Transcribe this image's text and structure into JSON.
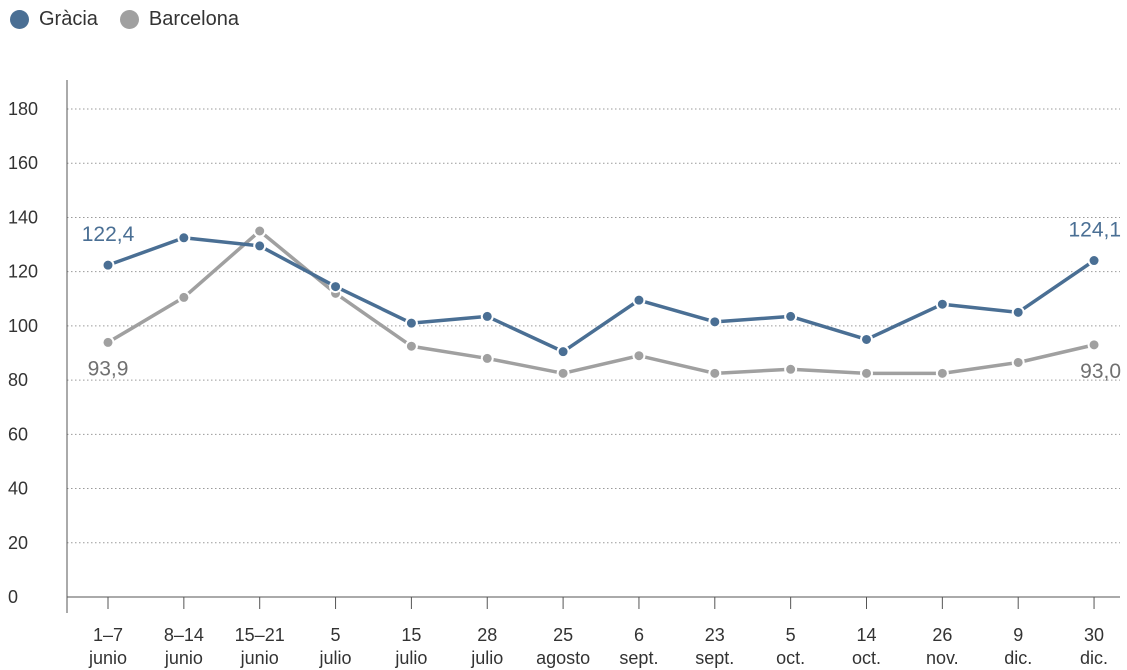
{
  "chart_data": {
    "type": "line",
    "categories": [
      [
        "1–7",
        "junio"
      ],
      [
        "8–14",
        "junio"
      ],
      [
        "15–21",
        "junio"
      ],
      [
        "5",
        "julio"
      ],
      [
        "15",
        "julio"
      ],
      [
        "28",
        "julio"
      ],
      [
        "25",
        "agosto"
      ],
      [
        "6",
        "sept."
      ],
      [
        "23",
        "sept."
      ],
      [
        "5",
        "oct."
      ],
      [
        "14",
        "oct."
      ],
      [
        "26",
        "nov."
      ],
      [
        "9",
        "dic."
      ],
      [
        "30",
        "dic."
      ]
    ],
    "series": [
      {
        "name": "Gràcia",
        "color": "#4a6f94",
        "values": [
          122.4,
          132.5,
          129.5,
          114.5,
          101.0,
          103.5,
          90.5,
          109.5,
          101.5,
          103.5,
          95.0,
          108.0,
          105.0,
          124.1
        ]
      },
      {
        "name": "Barcelona",
        "color": "#a0a0a0",
        "values": [
          93.9,
          110.5,
          135.0,
          112.0,
          92.5,
          88.0,
          82.5,
          89.0,
          82.5,
          84.0,
          82.5,
          82.5,
          86.5,
          93.0
        ]
      }
    ],
    "ylim": [
      0,
      180
    ],
    "yticks": [
      0,
      20,
      40,
      60,
      80,
      100,
      120,
      140,
      160,
      180
    ],
    "grid": true,
    "legend_position": "top-left",
    "annotations": [
      {
        "series": 0,
        "index": 0,
        "text": "122,4"
      },
      {
        "series": 1,
        "index": 0,
        "text": "93,9"
      },
      {
        "series": 0,
        "index": 13,
        "text": "124,1"
      },
      {
        "series": 1,
        "index": 13,
        "text": "93,0"
      }
    ]
  }
}
